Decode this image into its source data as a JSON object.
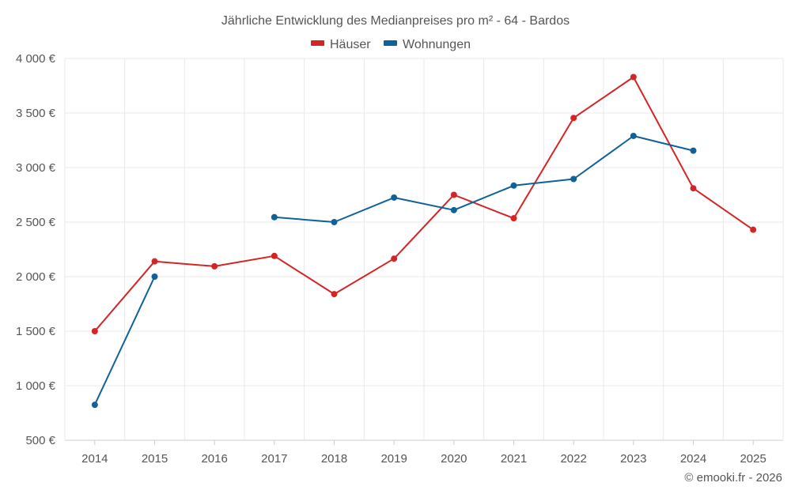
{
  "chart_data": {
    "type": "line",
    "title": "Jährliche Entwicklung des Medianpreises pro m² - 64 - Bardos",
    "categories": [
      "2014",
      "2015",
      "2016",
      "2017",
      "2018",
      "2019",
      "2020",
      "2021",
      "2022",
      "2023",
      "2024",
      "2025"
    ],
    "ylim": [
      500,
      4000
    ],
    "yticks": [
      500,
      1000,
      1500,
      2000,
      2500,
      3000,
      3500,
      4000
    ],
    "ytick_labels": [
      "500 €",
      "1 000 €",
      "1 500 €",
      "2 000 €",
      "2 500 €",
      "3 000 €",
      "3 500 €",
      "4 000 €"
    ],
    "grid": true,
    "legend_position": "top-center",
    "series": [
      {
        "name": "Häuser",
        "color": "#d42426",
        "values": [
          1500,
          2140,
          2095,
          2190,
          1840,
          2165,
          2750,
          2535,
          3455,
          3830,
          2810,
          2430
        ]
      },
      {
        "name": "Wohnungen",
        "color": "#0e6199",
        "values": [
          825,
          2000,
          null,
          2545,
          2500,
          2725,
          2610,
          2835,
          2895,
          3290,
          3155,
          null
        ]
      }
    ],
    "credit": "© emooki.fr - 2026"
  }
}
